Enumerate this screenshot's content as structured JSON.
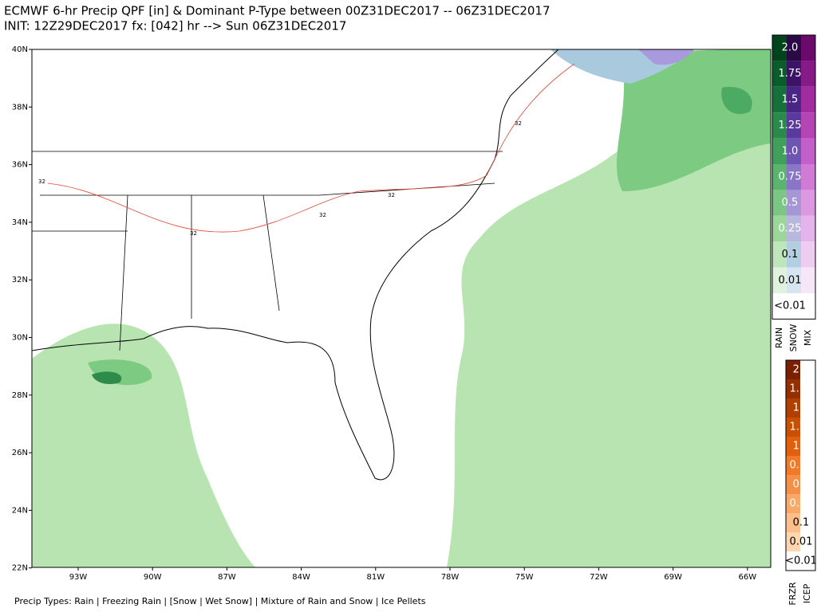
{
  "header": {
    "title_line1": "ECMWF 6-hr Precip QPF [in] & Dominant P-Type between 00Z31DEC2017 -- 06Z31DEC2017",
    "title_line2": "INIT: 12Z29DEC2017 fx: [042] hr --> Sun 06Z31DEC2017"
  },
  "map": {
    "lat_labels": [
      "40N",
      "38N",
      "36N",
      "34N",
      "32N",
      "30N",
      "28N",
      "26N",
      "24N",
      "22N"
    ],
    "lon_labels": [
      "93W",
      "90W",
      "87W",
      "84W",
      "81W",
      "78W",
      "75W",
      "72W",
      "69W",
      "66W"
    ],
    "contour_label": "32"
  },
  "legend": {
    "labels": [
      "2.0",
      "1.75",
      "1.5",
      "1.25",
      "1.0",
      "0.75",
      "0.5",
      "0.25",
      "0.1",
      "0.01",
      "<0.01"
    ],
    "rain_columns": [
      "RAIN",
      "SNOW",
      "MIX"
    ],
    "ice_columns": [
      "FRZR",
      "ICEP"
    ]
  },
  "footer": "Precip Types: Rain | Freezing Rain | [Snow | Wet Snow] | Mixture of Rain and Snow | Ice Pellets"
}
